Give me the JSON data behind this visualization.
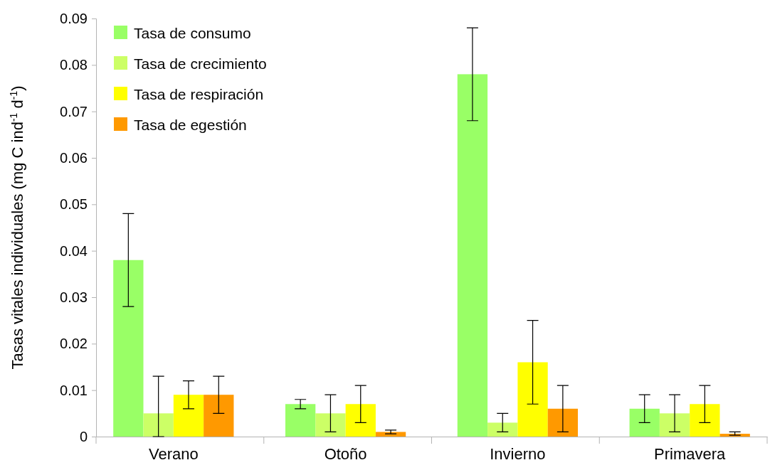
{
  "chart_data": {
    "type": "bar",
    "ylabel": "Tasas vitales individuales (mg C ind$^{-1}$ d$^{-1}$)",
    "categories": [
      "Verano",
      "Otoño",
      "Invierno",
      "Primavera"
    ],
    "series": [
      {
        "name": "Tasa de consumo",
        "color": "#99ff66",
        "values": [
          0.038,
          0.007,
          0.078,
          0.006
        ],
        "errors": [
          [
            0.028,
            0.048
          ],
          [
            0.006,
            0.008
          ],
          [
            0.068,
            0.088
          ],
          [
            0.003,
            0.009
          ]
        ]
      },
      {
        "name": "Tasa de crecimiento",
        "color": "#ccff66",
        "values": [
          0.005,
          0.005,
          0.003,
          0.005
        ],
        "errors": [
          [
            0,
            0.013
          ],
          [
            0.001,
            0.009
          ],
          [
            0.001,
            0.005
          ],
          [
            0.001,
            0.009
          ]
        ]
      },
      {
        "name": "Tasa de respiración",
        "color": "#ffff00",
        "values": [
          0.009,
          0.007,
          0.016,
          0.007
        ],
        "errors": [
          [
            0.006,
            0.012
          ],
          [
            0.003,
            0.011
          ],
          [
            0.007,
            0.025
          ],
          [
            0.003,
            0.011
          ]
        ]
      },
      {
        "name": "Tasa de egestión",
        "color": "#ff9900",
        "values": [
          0.009,
          0.001,
          0.006,
          0.0006
        ],
        "errors": [
          [
            0.005,
            0.013
          ],
          [
            0.0006,
            0.0014
          ],
          [
            0.001,
            0.011
          ],
          [
            0.0003,
            0.001
          ]
        ]
      }
    ],
    "ylim": [
      0,
      0.09
    ],
    "yticks": [
      0,
      0.01,
      0.02,
      0.03,
      0.04,
      0.05,
      0.06,
      0.07,
      0.08,
      0.09
    ],
    "legend": "top left"
  }
}
